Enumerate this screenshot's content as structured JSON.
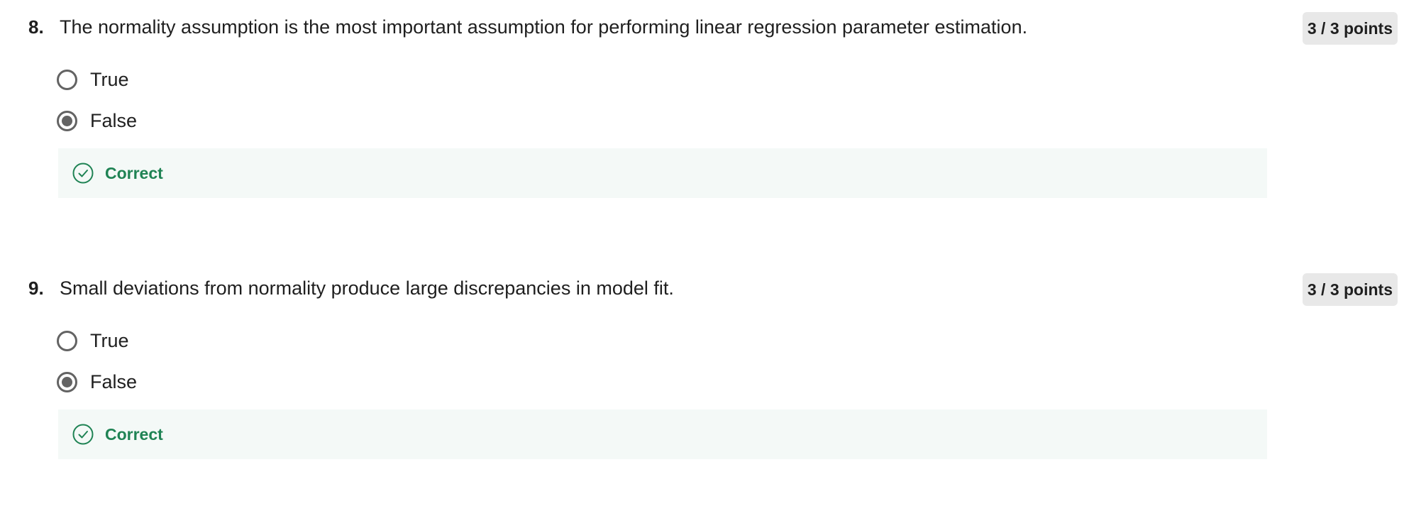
{
  "questions": [
    {
      "number": "8.",
      "text": "The normality assumption is the most important assumption for performing linear regression parameter estimation.",
      "points": "3 / 3 points",
      "options": [
        {
          "label": "True",
          "selected": false
        },
        {
          "label": "False",
          "selected": true
        }
      ],
      "feedback": {
        "label": "Correct",
        "icon": "check-circle-icon"
      }
    },
    {
      "number": "9.",
      "text": "Small deviations from normality produce large discrepancies in model fit.",
      "points": "3 / 3 points",
      "options": [
        {
          "label": "True",
          "selected": false
        },
        {
          "label": "False",
          "selected": true
        }
      ],
      "feedback": {
        "label": "Correct",
        "icon": "check-circle-icon"
      }
    }
  ],
  "colors": {
    "correct_green": "#1f8354",
    "feedback_bg": "#f4f9f7",
    "badge_bg": "#e8e8e8",
    "radio_gray": "#636363"
  }
}
